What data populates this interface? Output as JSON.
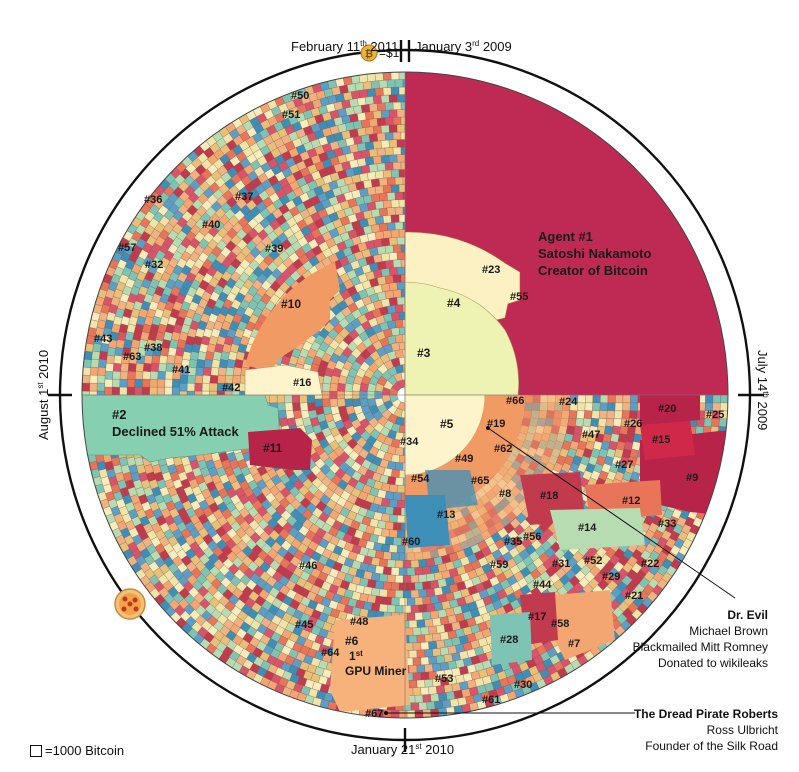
{
  "palette": [
    "#e8c07a",
    "#f0e4a8",
    "#f4a672",
    "#e8745a",
    "#c23a4e",
    "#3d8fb8",
    "#7ec4b4",
    "#b8dcb2",
    "#f6ecbc",
    "#d9546a",
    "#5b9fc6",
    "#efb282"
  ],
  "timeline": {
    "top_left": "February 11th 2011",
    "top_left_parts": {
      "month": "February 11",
      "sup": "th",
      "year": " 2011"
    },
    "top_price": "=$1",
    "top_right": "January 3rd 2009",
    "top_right_parts": {
      "month": "January 3",
      "sup": "rd",
      "year": " 2009"
    },
    "right": "July 14th 2009",
    "right_parts": {
      "month": "July 14",
      "sup": "th",
      "year": " 2009"
    },
    "bottom": "January 21st 2010",
    "bottom_parts": {
      "month": "January 21",
      "sup": "st",
      "year": " 2010"
    },
    "left": "August 1st 2010",
    "left_parts": {
      "month": "August 1",
      "sup": "st",
      "year": " 2010"
    }
  },
  "agents": [
    {
      "id": "a1",
      "text": "Agent #1",
      "color": "#be2a54"
    },
    {
      "id": "a2",
      "text": "#2",
      "color": "#86cfb1"
    },
    {
      "id": "a3",
      "text": "#3",
      "color": "#eef2b2"
    },
    {
      "id": "a4",
      "text": "#4",
      "color": "#fbf1c2"
    },
    {
      "id": "a5",
      "text": "#5",
      "color": "#fdf4cc"
    },
    {
      "id": "a6",
      "text": "#6",
      "color": "#f6b27a"
    },
    {
      "id": "a10",
      "text": "#10",
      "color": "#f29a64"
    },
    {
      "id": "a11",
      "text": "#11",
      "color": "#b8234a"
    }
  ],
  "annotations": {
    "agent1_line2": "Satoshi Nakamoto",
    "agent1_line3": "Creator of Bitcoin",
    "agent2_line2": "Declined 51% Attack",
    "agent6_gpu": "GPU Miner",
    "agent6_first": "1",
    "agent6_first_sup": "st"
  },
  "labels": [
    "#7",
    "#8",
    "#9",
    "#12",
    "#13",
    "#14",
    "#15",
    "#16",
    "#17",
    "#18",
    "#19",
    "#20",
    "#21",
    "#22",
    "#23",
    "#24",
    "#25",
    "#26",
    "#27",
    "#28",
    "#29",
    "#30",
    "#31",
    "#32",
    "#33",
    "#34",
    "#35",
    "#36",
    "#37",
    "#38",
    "#39",
    "#40",
    "#41",
    "#42",
    "#43",
    "#44",
    "#45",
    "#46",
    "#47",
    "#48",
    "#49",
    "#50",
    "#51",
    "#52",
    "#53",
    "#54",
    "#55",
    "#56",
    "#57",
    "#58",
    "#59",
    "#60",
    "#61",
    "#62",
    "#63",
    "#64",
    "#65",
    "#66",
    "#67"
  ],
  "dr_evil": {
    "title": "Dr. Evil",
    "line1": "Michael Brown",
    "line2": "Blackmailed Mitt Romney",
    "line3": "Donated to wikileaks"
  },
  "dread_pirate": {
    "title": "The Dread Pirate Roberts",
    "line1": "Ross Ulbricht",
    "line2": "Founder of the Silk Road"
  },
  "legend": {
    "text": "=1000 Bitcoin"
  },
  "icons": [
    "bitcoin-coin-icon",
    "pizza-icon"
  ]
}
